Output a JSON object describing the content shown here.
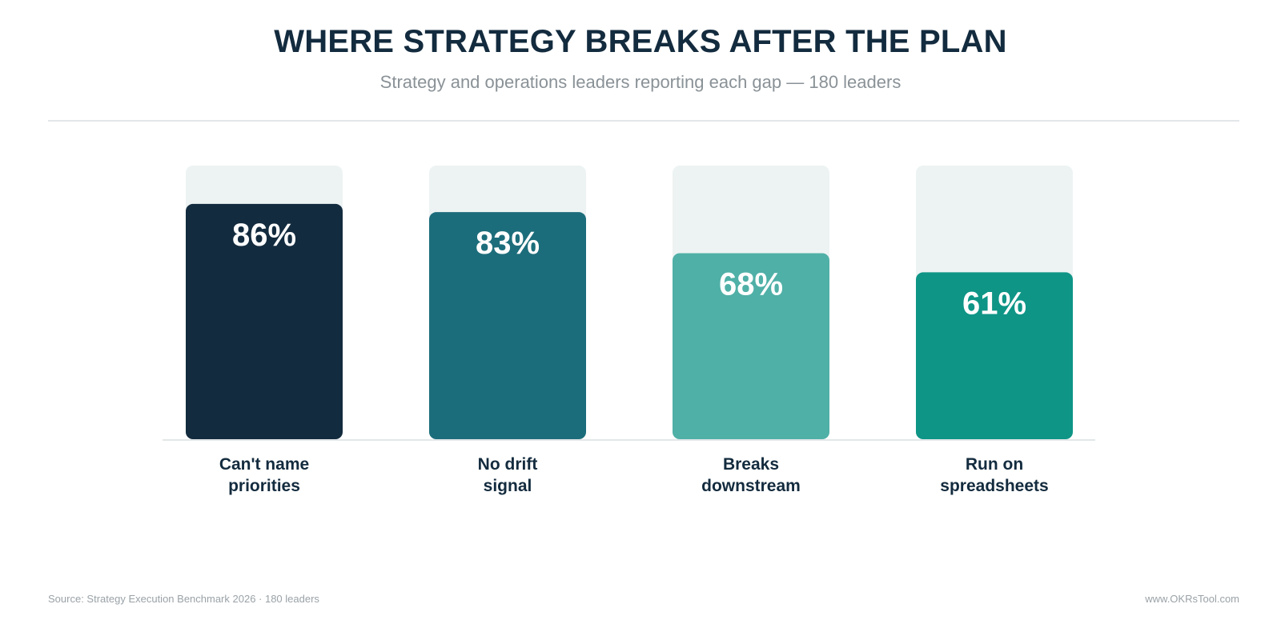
{
  "chart_data": {
    "type": "bar",
    "title": "WHERE STRATEGY BREAKS AFTER THE PLAN",
    "subtitle": "Strategy and operations leaders reporting each gap — 180 leaders",
    "categories": [
      [
        "Can't name",
        "priorities"
      ],
      [
        "No drift",
        "signal"
      ],
      [
        "Breaks",
        "downstream"
      ],
      [
        "Run on",
        "spreadsheets"
      ]
    ],
    "values": [
      86,
      83,
      68,
      61
    ],
    "value_suffix": "%",
    "ylim": [
      0,
      100
    ],
    "colors": [
      "#132b3e",
      "#1c6d7b",
      "#4fb0a7",
      "#0e9586"
    ],
    "track_color": "#edf3f3",
    "baseline_color": "#e3e7e9",
    "grid": false,
    "legend": "none"
  },
  "footer": {
    "source": "Source: Strategy Execution Benchmark 2026 · 180 leaders",
    "url": "www.OKRsTool.com"
  }
}
